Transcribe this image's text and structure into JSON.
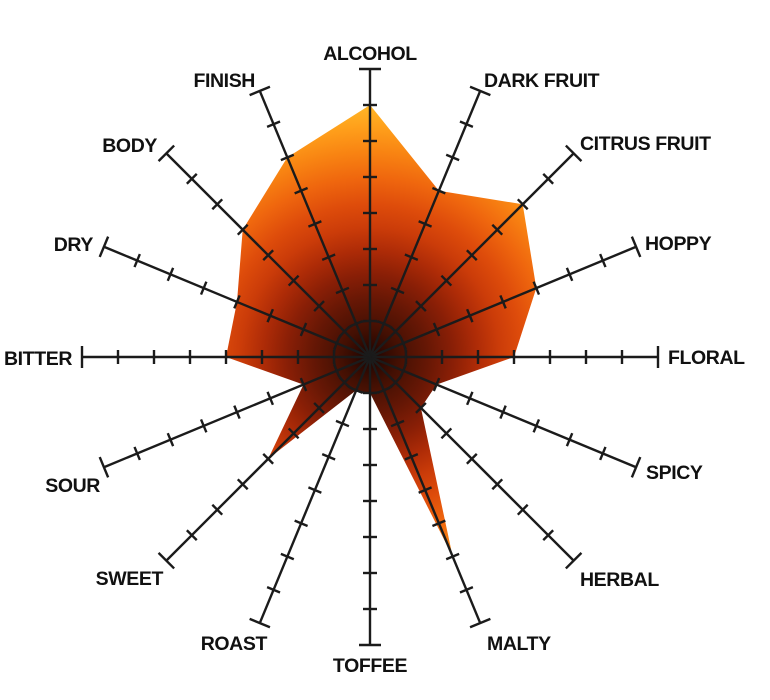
{
  "chart_data": {
    "type": "radar",
    "title": "",
    "axes": [
      {
        "label": "ALCOHOL",
        "value": 7
      },
      {
        "label": "DARK FRUIT",
        "value": 5
      },
      {
        "label": "CITRUS FRUIT",
        "value": 6
      },
      {
        "label": "HOPPY",
        "value": 5
      },
      {
        "label": "FLORAL",
        "value": 4
      },
      {
        "label": "SPICY",
        "value": 2
      },
      {
        "label": "HERBAL",
        "value": 2
      },
      {
        "label": "MALTY",
        "value": 6
      },
      {
        "label": "TOFFEE",
        "value": 1
      },
      {
        "label": "ROAST",
        "value": 1
      },
      {
        "label": "SWEET",
        "value": 4
      },
      {
        "label": "SOUR",
        "value": 2
      },
      {
        "label": "BITTER",
        "value": 4
      },
      {
        "label": "DRY",
        "value": 4
      },
      {
        "label": "BODY",
        "value": 5
      },
      {
        "label": "FINISH",
        "value": 6
      }
    ],
    "scale": {
      "min": 0,
      "max": 8,
      "tick_step": 1
    },
    "layout_hints": {
      "start_axis": "top",
      "direction": "clockwise",
      "angle_step_deg": 22.5,
      "grid": "ticks-on-spokes",
      "legend": "none",
      "center_ring_radius_units": 1
    },
    "style": {
      "background": "#ffffff",
      "axis_color": "#1b1b1b",
      "label_color": "#111111",
      "fill_gradient": [
        {
          "at": 0.0,
          "color": "#1c0300"
        },
        {
          "at": 0.1,
          "color": "#441003"
        },
        {
          "at": 0.2,
          "color": "#661705"
        },
        {
          "at": 0.29,
          "color": "#8a1f06"
        },
        {
          "at": 0.37,
          "color": "#ad2b07"
        },
        {
          "at": 0.45,
          "color": "#cb3c09"
        },
        {
          "at": 0.53,
          "color": "#de4c0b"
        },
        {
          "at": 0.62,
          "color": "#ef660e"
        },
        {
          "at": 0.71,
          "color": "#f88312"
        },
        {
          "at": 0.8,
          "color": "#ffa01b"
        },
        {
          "at": 0.88,
          "color": "#ffb928"
        },
        {
          "at": 0.95,
          "color": "#ffcd3c"
        },
        {
          "at": 1.0,
          "color": "#ffdf64"
        }
      ]
    }
  }
}
